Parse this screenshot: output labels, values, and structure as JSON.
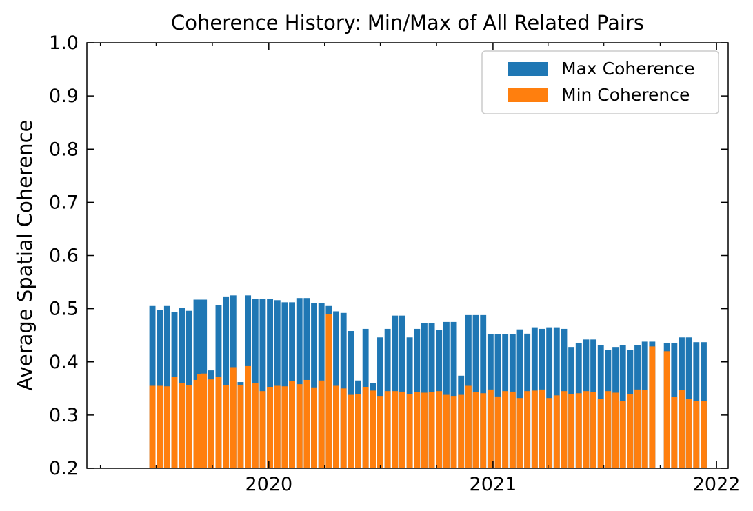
{
  "chart_data": {
    "type": "bar",
    "title": "Coherence History: Min/Max of All Related Pairs",
    "xlabel": "",
    "ylabel": "Average Spatial Coherence",
    "ylim": [
      0.2,
      1.0
    ],
    "xlim": [
      "2019-03-10",
      "2022-01-20"
    ],
    "x_ticks": [
      "2020",
      "2021",
      "2022"
    ],
    "y_ticks": [
      "0.2",
      "0.3",
      "0.4",
      "0.5",
      "0.6",
      "0.7",
      "0.8",
      "0.9",
      "1.0"
    ],
    "grid": false,
    "legend_position": "top-right",
    "colors": {
      "max": "#1f77b4",
      "min": "#ff7f0e"
    },
    "x": [
      "2019-06-25",
      "2019-07-07",
      "2019-07-19",
      "2019-07-31",
      "2019-08-12",
      "2019-08-24",
      "2019-09-05",
      "2019-09-11",
      "2019-09-17",
      "2019-09-29",
      "2019-10-11",
      "2019-10-23",
      "2019-11-04",
      "2019-11-16",
      "2019-11-28",
      "2019-12-10",
      "2019-12-22",
      "2020-01-03",
      "2020-01-15",
      "2020-01-27",
      "2020-02-08",
      "2020-02-20",
      "2020-03-03",
      "2020-03-15",
      "2020-03-27",
      "2020-04-08",
      "2020-04-20",
      "2020-05-02",
      "2020-05-14",
      "2020-05-26",
      "2020-06-07",
      "2020-06-19",
      "2020-07-01",
      "2020-07-13",
      "2020-07-25",
      "2020-08-06",
      "2020-08-18",
      "2020-08-30",
      "2020-09-11",
      "2020-09-23",
      "2020-10-05",
      "2020-10-17",
      "2020-10-29",
      "2020-11-10",
      "2020-11-22",
      "2020-12-04",
      "2020-12-16",
      "2020-12-28",
      "2021-01-09",
      "2021-01-21",
      "2021-02-02",
      "2021-02-14",
      "2021-02-26",
      "2021-03-10",
      "2021-03-22",
      "2021-04-03",
      "2021-04-15",
      "2021-04-27",
      "2021-05-09",
      "2021-05-21",
      "2021-06-02",
      "2021-06-14",
      "2021-06-26",
      "2021-07-08",
      "2021-07-20",
      "2021-08-01",
      "2021-08-13",
      "2021-08-25",
      "2021-09-06",
      "2021-09-18",
      "2021-10-12",
      "2021-10-24",
      "2021-11-05",
      "2021-11-17",
      "2021-11-29",
      "2021-12-11"
    ],
    "series": [
      {
        "name": "Max Coherence",
        "values": [
          0.505,
          0.498,
          0.505,
          0.494,
          0.502,
          0.496,
          0.517,
          0.517,
          0.517,
          0.384,
          0.507,
          0.523,
          0.525,
          0.362,
          0.525,
          0.518,
          0.518,
          0.518,
          0.516,
          0.512,
          0.512,
          0.52,
          0.52,
          0.51,
          0.51,
          0.505,
          0.495,
          0.492,
          0.458,
          0.365,
          0.462,
          0.36,
          0.446,
          0.462,
          0.487,
          0.487,
          0.446,
          0.462,
          0.473,
          0.473,
          0.46,
          0.475,
          0.475,
          0.374,
          0.488,
          0.488,
          0.488,
          0.452,
          0.452,
          0.452,
          0.452,
          0.461,
          0.453,
          0.465,
          0.462,
          0.465,
          0.465,
          0.462,
          0.428,
          0.436,
          0.442,
          0.442,
          0.432,
          0.423,
          0.428,
          0.432,
          0.423,
          0.432,
          0.438,
          0.438,
          0.436,
          0.436,
          0.446,
          0.446,
          0.437,
          0.437
        ]
      },
      {
        "name": "Min Coherence",
        "values": [
          0.355,
          0.355,
          0.354,
          0.372,
          0.36,
          0.356,
          0.366,
          0.377,
          0.378,
          0.367,
          0.372,
          0.356,
          0.39,
          0.357,
          0.392,
          0.36,
          0.345,
          0.353,
          0.355,
          0.354,
          0.364,
          0.358,
          0.366,
          0.352,
          0.365,
          0.49,
          0.355,
          0.35,
          0.338,
          0.34,
          0.353,
          0.346,
          0.336,
          0.345,
          0.345,
          0.344,
          0.339,
          0.343,
          0.342,
          0.343,
          0.345,
          0.338,
          0.336,
          0.338,
          0.355,
          0.343,
          0.341,
          0.348,
          0.335,
          0.345,
          0.344,
          0.332,
          0.345,
          0.346,
          0.348,
          0.332,
          0.337,
          0.345,
          0.34,
          0.341,
          0.345,
          0.343,
          0.33,
          0.345,
          0.342,
          0.327,
          0.34,
          0.348,
          0.347,
          0.429,
          0.42,
          0.334,
          0.347,
          0.33,
          0.327,
          0.327
        ]
      }
    ]
  }
}
